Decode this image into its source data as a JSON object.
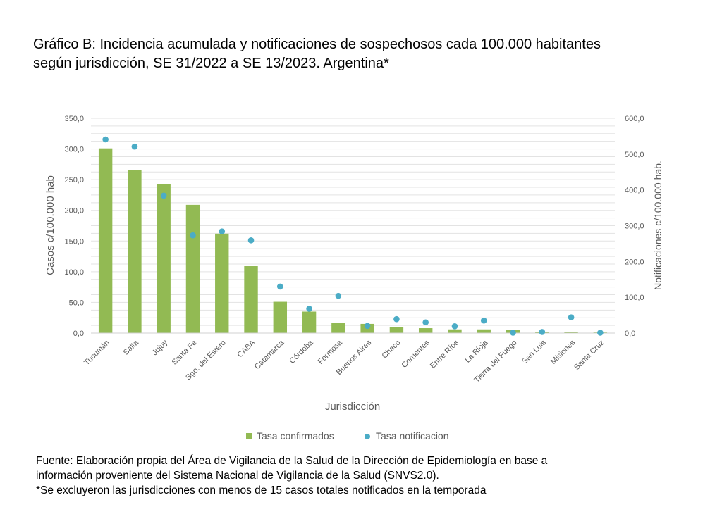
{
  "title_line1": "Gráfico B: Incidencia acumulada y notificaciones de sospechosos cada 100.000 habitantes",
  "title_line2": "según jurisdicción, SE 31/2022 a SE 13/2023. Argentina*",
  "footer": {
    "line1": "Fuente: Elaboración propia del Área de Vigilancia de la Salud de la Dirección de Epidemiología en base a",
    "line2": "información proveniente del Sistema Nacional de Vigilancia de la Salud (SNVS2.0).",
    "line3": "*Se excluyeron las jurisdicciones con menos de 15 casos totales notificados en la temporada"
  },
  "chart_data": {
    "type": "bar",
    "xlabel": "Jurisdicción",
    "ylabel": "Casos c/100.000 hab",
    "y2label": "Notificaciones c/100.000 hab.",
    "ylim": [
      0,
      350
    ],
    "y2lim": [
      0,
      600
    ],
    "yticks": [
      "0,0",
      "50,0",
      "100,0",
      "150,0",
      "200,0",
      "250,0",
      "300,0",
      "350,0"
    ],
    "y2ticks": [
      "0,0",
      "100,0",
      "200,0",
      "300,0",
      "400,0",
      "500,0",
      "600,0"
    ],
    "grid": true,
    "legend_position": "bottom",
    "categories": [
      "Tucumán",
      "Salta",
      "Jujuy",
      "Santa Fe",
      "Sgo. del Estero",
      "CABA",
      "Catamarca",
      "Córdoba",
      "Formosa",
      "Buenos Aires",
      "Chaco",
      "Corrientes",
      "Entre Ríos",
      "La Rioja",
      "Tierra del Fuego",
      "San Luis",
      "Misiones",
      "Santa Cruz"
    ],
    "series": [
      {
        "name": "Tasa confirmados",
        "kind": "bar",
        "axis": "left",
        "color": "#92BA53",
        "values": [
          301,
          266,
          243,
          209,
          162,
          109,
          51,
          35,
          17,
          15,
          10,
          8,
          6,
          6,
          5,
          2,
          2,
          1
        ]
      },
      {
        "name": "Tasa notificacion",
        "kind": "scatter",
        "axis": "right",
        "color": "#4BACC6",
        "values": [
          541,
          521,
          384,
          273,
          284,
          259,
          130,
          68,
          104,
          20,
          39,
          30,
          19,
          35,
          1,
          3,
          44,
          1
        ]
      }
    ]
  }
}
